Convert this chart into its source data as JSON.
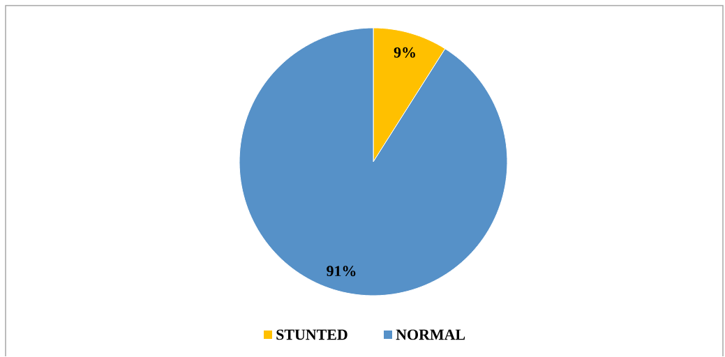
{
  "chart_data": {
    "type": "pie",
    "categories": [
      "STUNTED",
      "NORMAL"
    ],
    "values": [
      9,
      91
    ],
    "value_labels": [
      "9%",
      "91%"
    ],
    "colors": [
      "#ffc000",
      "#5691c8"
    ],
    "legend": "bottom"
  }
}
